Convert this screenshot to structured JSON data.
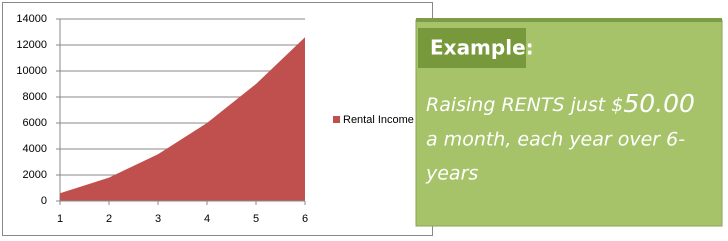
{
  "chart_data": {
    "type": "area",
    "x": [
      1,
      2,
      3,
      4,
      5,
      6
    ],
    "series": [
      {
        "name": "Rental Income",
        "color": "#c0504d",
        "values": [
          600,
          1800,
          3600,
          6000,
          9000,
          12600
        ]
      }
    ],
    "xlim": [
      1,
      6
    ],
    "xticks": [
      1,
      2,
      3,
      4,
      5,
      6
    ],
    "ylim": [
      0,
      14000
    ],
    "yticks": [
      0,
      2000,
      4000,
      6000,
      8000,
      10000,
      12000,
      14000
    ],
    "grid": true,
    "legend": "right"
  },
  "callout": {
    "title": "Example:",
    "line1_text": "Raising RENTS just $",
    "line1_amount": "50.00",
    "line2": "a month, each year over 6-",
    "line3": "years"
  }
}
